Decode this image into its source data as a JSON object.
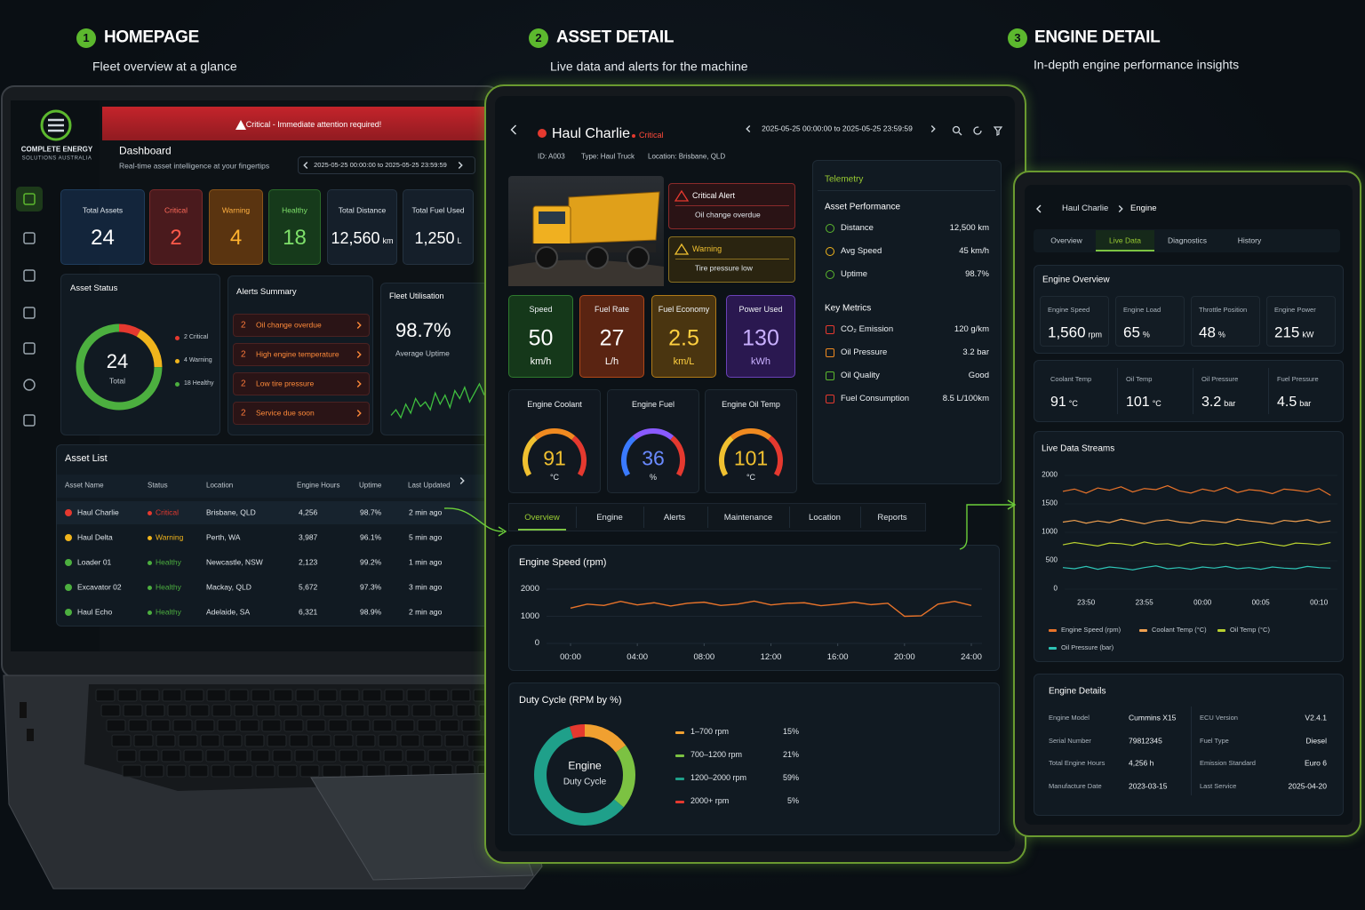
{
  "sections": [
    {
      "number": "1",
      "title": "HOMEPAGE",
      "subtitle": "Fleet overview at a glance"
    },
    {
      "number": "2",
      "title": "ASSET DETAIL",
      "subtitle": "Live data and alerts for the machine"
    },
    {
      "number": "3",
      "title": "ENGINE DETAIL",
      "subtitle": "In-depth engine performance insights"
    }
  ],
  "homepage": {
    "brand": {
      "name": "COMPLETE ENERGY",
      "tagline": "SOLUTIONS AUSTRALIA"
    },
    "banner": "Critical - Immediate attention required!",
    "title": "Dashboard",
    "subtitle": "Real-time asset intelligence at your fingertips",
    "date_range": "2025-05-25 00:00:00 to 2025-05-25 23:59:59",
    "kpis": [
      {
        "label": "Total Assets",
        "value": "24"
      },
      {
        "label": "Critical",
        "value": "2"
      },
      {
        "label": "Warning",
        "value": "4"
      },
      {
        "label": "Healthy",
        "value": "18"
      },
      {
        "label": "Total Distance",
        "value": "12,560",
        "unit": "km"
      },
      {
        "label": "Total Fuel Used",
        "value": "1,250",
        "unit": "L"
      }
    ],
    "asset_status": {
      "title": "Asset Status",
      "total": "24",
      "total_label": "Total",
      "segments": [
        {
          "label": "2 Critical",
          "value": 2,
          "color": "#e5392f"
        },
        {
          "label": "4 Warning",
          "value": 4,
          "color": "#f0b41c"
        },
        {
          "label": "18 Healthy",
          "value": 18,
          "color": "#4caf3f"
        }
      ]
    },
    "alerts": {
      "title": "Alerts Summary",
      "items": [
        {
          "count": "2",
          "text": "Oil change overdue"
        },
        {
          "count": "2",
          "text": "High engine temperature"
        },
        {
          "count": "2",
          "text": "Low tire pressure"
        },
        {
          "count": "2",
          "text": "Service due soon"
        }
      ]
    },
    "utilisation": {
      "title": "Fleet Utilisation",
      "value": "98.7%",
      "label": "Average Uptime",
      "trend": [
        40,
        45,
        38,
        50,
        42,
        55,
        48,
        52,
        45,
        60,
        50,
        58,
        47,
        62,
        55,
        65,
        52,
        60,
        68,
        58
      ],
      "color": "#3fbf3f"
    },
    "asset_list": {
      "title": "Asset List",
      "columns": [
        "Asset Name",
        "Status",
        "Location",
        "Engine Hours",
        "Uptime",
        "Last Updated"
      ],
      "rows": [
        [
          "Haul Charlie",
          "Critical",
          "Brisbane, QLD",
          "4,256",
          "98.7%",
          "2 min ago"
        ],
        [
          "Haul Delta",
          "Warning",
          "Perth, WA",
          "3,987",
          "96.1%",
          "5 min ago"
        ],
        [
          "Loader 01",
          "Healthy",
          "Newcastle, NSW",
          "2,123",
          "99.2%",
          "1 min ago"
        ],
        [
          "Excavator 02",
          "Healthy",
          "Mackay, QLD",
          "5,672",
          "97.3%",
          "3 min ago"
        ],
        [
          "Haul Echo",
          "Healthy",
          "Adelaide, SA",
          "6,321",
          "98.9%",
          "2 min ago"
        ]
      ]
    }
  },
  "asset_detail": {
    "asset": {
      "name": "Haul Charlie",
      "status": "Critical",
      "id": "ID: A003",
      "type": "Type: Haul Truck",
      "location": "Location: Brisbane, QLD"
    },
    "date_range": "2025-05-25 00:00:00 to 2025-05-25 23:59:59",
    "alerts": [
      {
        "title": "Critical Alert",
        "text": "Oil change overdue"
      },
      {
        "title": "Warning",
        "text": "Tire pressure low"
      }
    ],
    "metrics": [
      {
        "label": "Speed",
        "value": "50",
        "unit": "km/h"
      },
      {
        "label": "Fuel Rate",
        "value": "27",
        "unit": "L/h"
      },
      {
        "label": "Fuel Economy",
        "value": "2.5",
        "unit": "km/L"
      },
      {
        "label": "Power Used",
        "value": "130",
        "unit": "kWh"
      }
    ],
    "gauges": [
      {
        "label": "Engine Coolant",
        "value": "91",
        "unit": "°C"
      },
      {
        "label": "Engine Fuel",
        "value": "36",
        "unit": "%"
      },
      {
        "label": "Engine Oil Temp",
        "value": "101",
        "unit": "°C"
      }
    ],
    "telemetry": {
      "title": "Telemetry",
      "groups": [
        {
          "title": "Asset Performance",
          "items": [
            [
              "Distance",
              "12,500 km"
            ],
            [
              "Avg Speed",
              "45 km/h"
            ],
            [
              "Uptime",
              "98.7%"
            ]
          ]
        },
        {
          "title": "Key Metrics",
          "items": [
            [
              "CO₂ Emission",
              "120 g/km"
            ],
            [
              "Oil Pressure",
              "3.2 bar"
            ],
            [
              "Oil Quality",
              "Good"
            ],
            [
              "Fuel Consumption",
              "8.5 L/100km"
            ]
          ]
        }
      ]
    },
    "tabs": [
      "Overview",
      "Engine",
      "Alerts",
      "Maintenance",
      "Location",
      "Reports"
    ],
    "engine_speed": {
      "title": "Engine Speed (rpm)",
      "type": "line",
      "color": "#e8732a",
      "x": [
        0,
        1,
        2,
        3,
        4,
        5,
        6,
        7,
        8,
        9,
        10,
        11,
        12,
        13,
        14,
        15,
        16,
        17,
        18,
        19,
        20,
        21,
        22,
        23,
        24
      ],
      "values": [
        1300,
        1450,
        1400,
        1550,
        1420,
        1500,
        1380,
        1480,
        1520,
        1400,
        1450,
        1560,
        1420,
        1480,
        1500,
        1390,
        1450,
        1520,
        1430,
        1480,
        1000,
        1020,
        1450,
        1550,
        1400
      ],
      "xlim": [
        0,
        24
      ],
      "xticks": [
        {
          "value": 0,
          "label": "00:00"
        },
        {
          "value": 4,
          "label": "04:00"
        },
        {
          "value": 8,
          "label": "08:00"
        },
        {
          "value": 12,
          "label": "12:00"
        },
        {
          "value": 16,
          "label": "16:00"
        },
        {
          "value": 20,
          "label": "20:00"
        },
        {
          "value": 24,
          "label": "24:00"
        }
      ],
      "ylim": [
        0,
        2000
      ],
      "yticks": [
        0,
        1000,
        2000
      ]
    },
    "duty_cycle": {
      "title": "Duty Cycle (RPM by %)",
      "type": "donut",
      "center": [
        "Engine",
        "Duty Cycle"
      ],
      "segments": [
        {
          "label": "1–700 rpm",
          "value": 15,
          "value_label": "15%",
          "color": "#f0a030"
        },
        {
          "label": "700–1200 rpm",
          "value": 21,
          "value_label": "21%",
          "color": "#7cc242"
        },
        {
          "label": "1200–2000 rpm",
          "value": 59,
          "value_label": "59%",
          "color": "#1fa08a"
        },
        {
          "label": "2000+ rpm",
          "value": 5,
          "value_label": "5%",
          "color": "#e5392f"
        }
      ]
    }
  },
  "engine_detail": {
    "breadcrumb": [
      "Haul Charlie",
      "Engine"
    ],
    "tabs": [
      "Overview",
      "Live Data",
      "Diagnostics",
      "History"
    ],
    "active_tab": 1,
    "overview": {
      "title": "Engine Overview",
      "cards": [
        {
          "label": "Engine Speed",
          "value": "1,560",
          "unit": "rpm"
        },
        {
          "label": "Engine Load",
          "value": "65",
          "unit": "%"
        },
        {
          "label": "Throttle Position",
          "value": "48",
          "unit": "%"
        },
        {
          "label": "Engine Power",
          "value": "215",
          "unit": "kW"
        }
      ],
      "cards2": [
        {
          "label": "Coolant Temp",
          "value": "91",
          "unit": "°C"
        },
        {
          "label": "Oil Temp",
          "value": "101",
          "unit": "°C"
        },
        {
          "label": "Oil Pressure",
          "value": "3.2",
          "unit": "bar"
        },
        {
          "label": "Fuel Pressure",
          "value": "4.5",
          "unit": "bar"
        }
      ]
    },
    "live_data": {
      "title": "Live Data Streams",
      "type": "line",
      "categories": [
        null,
        null,
        "23:50",
        null,
        null,
        null,
        null,
        "23:55",
        null,
        null,
        null,
        null,
        "00:00",
        null,
        null,
        null,
        null,
        "00:05",
        null,
        null,
        null,
        null,
        "00:10",
        null
      ],
      "ylim": [
        0,
        2000
      ],
      "yticks": [
        0,
        500,
        1000,
        1500,
        2000
      ],
      "series": [
        {
          "name": "Engine Speed (rpm)",
          "color": "#e8732a",
          "values": [
            1720,
            1760,
            1690,
            1780,
            1740,
            1800,
            1710,
            1770,
            1750,
            1820,
            1730,
            1690,
            1760,
            1720,
            1790,
            1700,
            1750,
            1730,
            1680,
            1760,
            1740,
            1710,
            1770,
            1650
          ]
        },
        {
          "name": "Coolant Temp (°C)",
          "color": "#f0a050",
          "values": [
            1180,
            1210,
            1160,
            1200,
            1170,
            1230,
            1190,
            1150,
            1200,
            1220,
            1180,
            1160,
            1210,
            1190,
            1170,
            1230,
            1200,
            1180,
            1150,
            1210,
            1190,
            1220,
            1170,
            1200
          ]
        },
        {
          "name": "Oil Temp (°C)",
          "color": "#b8d030",
          "values": [
            780,
            820,
            790,
            760,
            810,
            800,
            770,
            830,
            790,
            800,
            760,
            820,
            790,
            780,
            810,
            770,
            800,
            830,
            790,
            760,
            810,
            800,
            780,
            820
          ]
        },
        {
          "name": "Oil Pressure (bar)",
          "color": "#2ec4b6",
          "values": [
            380,
            360,
            400,
            350,
            390,
            370,
            340,
            380,
            410,
            360,
            380,
            350,
            390,
            370,
            400,
            360,
            380,
            350,
            390,
            370,
            360,
            400,
            380,
            370
          ]
        }
      ]
    },
    "details": {
      "title": "Engine Details",
      "rows": [
        [
          "Engine Model",
          "Cummins X15",
          "ECU Version",
          "V2.4.1"
        ],
        [
          "Serial Number",
          "79812345",
          "Fuel Type",
          "Diesel"
        ],
        [
          "Total Engine Hours",
          "4,256 h",
          "Emission Standard",
          "Euro 6"
        ],
        [
          "Manufacture Date",
          "2023-03-15",
          "Last Service",
          "2025-04-20"
        ]
      ]
    }
  }
}
